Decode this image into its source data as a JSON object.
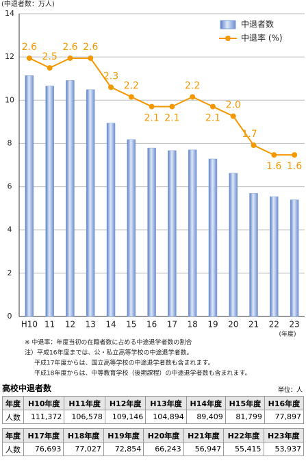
{
  "chart_data": {
    "type": "bar_line",
    "y_label": "(中退者数：万人)",
    "x_label": "(年度)",
    "categories": [
      "H10",
      "11",
      "12",
      "13",
      "14",
      "15",
      "16",
      "17",
      "18",
      "19",
      "20",
      "21",
      "22",
      "23"
    ],
    "series": [
      {
        "name": "中退者数",
        "color": "#7f9fd8",
        "type": "bar",
        "values": [
          11.1372,
          10.6578,
          10.9146,
          10.4894,
          8.9409,
          8.1799,
          7.7897,
          7.6693,
          7.7027,
          7.2854,
          6.6243,
          5.6947,
          5.5415,
          5.3937
        ]
      },
      {
        "name": "中退率 (%)",
        "color": "#f39800",
        "type": "line",
        "axis": "y2",
        "values": [
          2.6,
          2.5,
          2.6,
          2.6,
          2.3,
          2.2,
          2.1,
          2.1,
          2.2,
          2.1,
          2.0,
          1.7,
          1.6,
          1.6
        ],
        "value_labels": [
          "2.6",
          "2.5",
          "2.6",
          "2.6",
          "2.3",
          "2.2",
          "2.1",
          "2.1",
          "2.2",
          "2.1",
          "2.0",
          "1.7",
          "1.6",
          "1.6"
        ]
      }
    ],
    "ylim": [
      0,
      14
    ],
    "yticks": [
      0,
      2,
      4,
      6,
      8,
      10,
      12,
      14
    ],
    "y2lim": [
      -0.07,
      3.06
    ],
    "grid": true,
    "legend": "top-right",
    "notes": [
      "※ 中退率：年度当初の在籍者数に占める中途退学者数の割合",
      "注）平成16年度までは、公・私立高等学校の中途退学者数。",
      "平成17年度からは、国立高等学校の中途退学者数も含まれます。",
      "平成18年度からは、中等教育学校（後期課程）の中途退学者数も含まれます。"
    ]
  },
  "table": {
    "title": "高校中退者数",
    "unit": "単位：人",
    "blocks": [
      {
        "header": [
          "年度",
          "H10年度",
          "H11年度",
          "H12年度",
          "H13年度",
          "H14年度",
          "H15年度",
          "H16年度"
        ],
        "row": [
          "人数",
          "111,372",
          "106,578",
          "109,146",
          "104,894",
          "89,409",
          "81,799",
          "77,897"
        ]
      },
      {
        "header": [
          "年度",
          "H17年度",
          "H18年度",
          "H19年度",
          "H20年度",
          "H21年度",
          "H22年度",
          "H23年度"
        ],
        "row": [
          "人数",
          "76,693",
          "77,027",
          "72,854",
          "66,243",
          "56,947",
          "55,415",
          "53,937"
        ]
      }
    ]
  }
}
